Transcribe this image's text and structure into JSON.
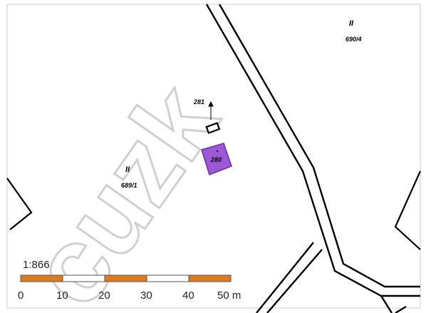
{
  "map": {
    "scale_ratio": "1:866",
    "watermark": "cuzk",
    "parcel_labels": [
      {
        "symbol": "II",
        "number": "690/4"
      },
      {
        "symbol": "II",
        "number": "689/1"
      }
    ],
    "building_number": "280",
    "point_label": "281",
    "scale_bar": {
      "ticks": [
        "0",
        "10",
        "20",
        "30",
        "40",
        "50 m"
      ],
      "segment_colors": [
        "#e07a1f",
        "#ffffff",
        "#e07a1f",
        "#ffffff",
        "#e07a1f"
      ]
    },
    "colors": {
      "building_fill": "#9b59d6",
      "building_stroke": "#6a2fa5",
      "scale_orange": "#e07a1f",
      "line": "#000000"
    }
  }
}
